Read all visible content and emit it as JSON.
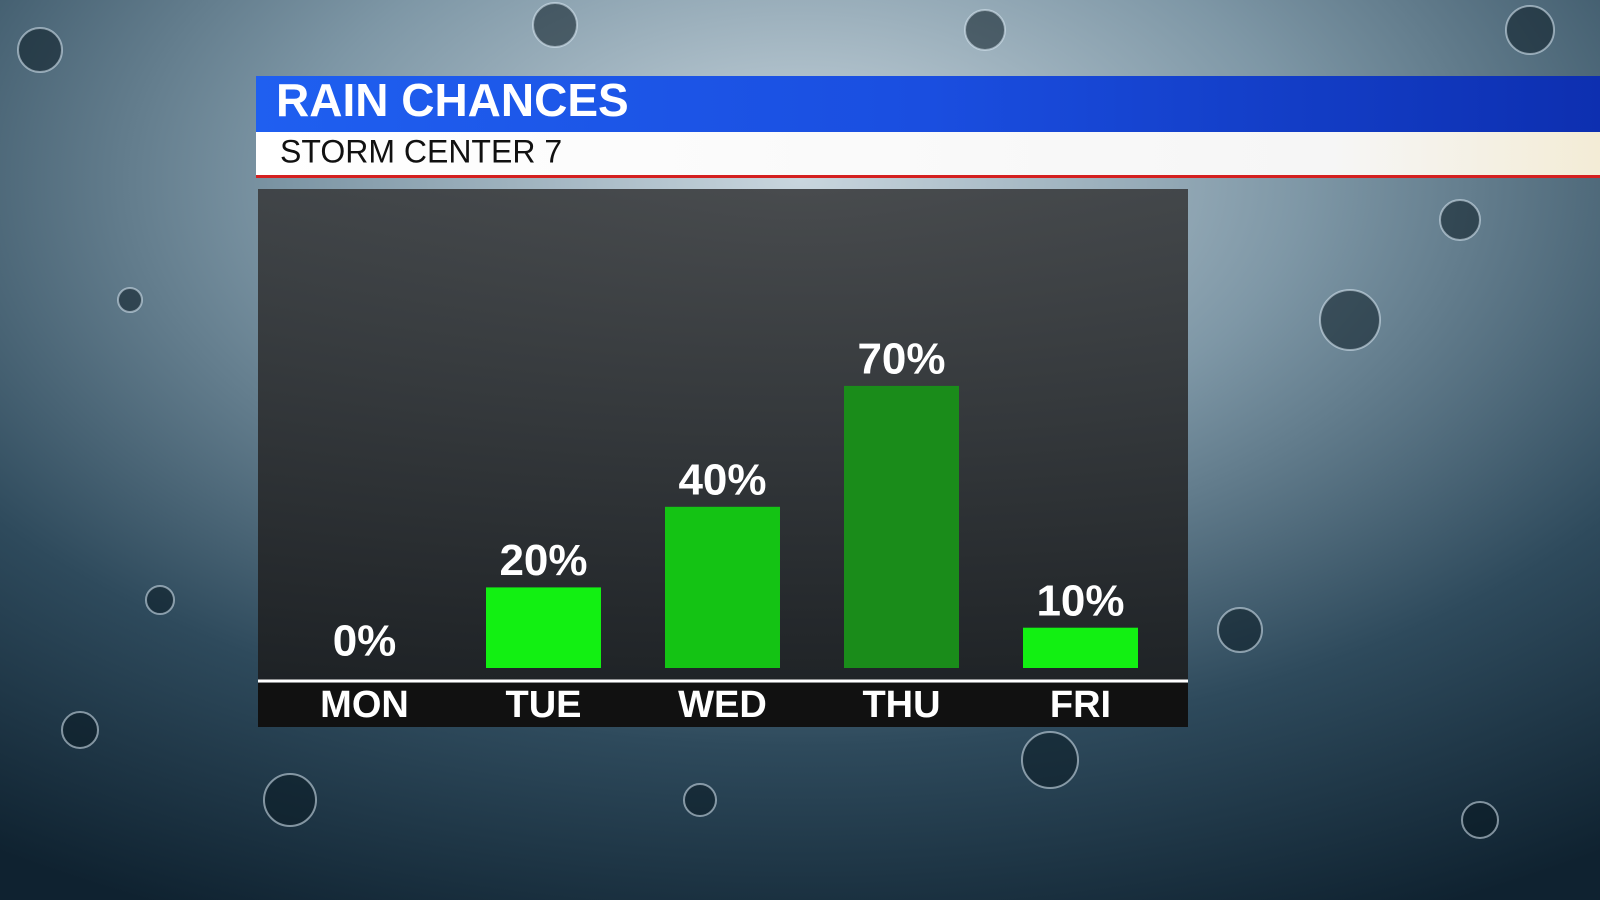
{
  "chart_data": {
    "type": "bar",
    "title": "RAIN CHANCES",
    "subtitle": "STORM CENTER 7",
    "categories": [
      "MON",
      "TUE",
      "WED",
      "THU",
      "FRI"
    ],
    "values": [
      0,
      20,
      40,
      70,
      10
    ],
    "value_labels": [
      "0%",
      "20%",
      "40%",
      "70%",
      "10%"
    ],
    "colors": [
      "#12f012",
      "#12f012",
      "#14c314",
      "#1a8c1a",
      "#12f012"
    ],
    "ylim": [
      0,
      100
    ]
  }
}
